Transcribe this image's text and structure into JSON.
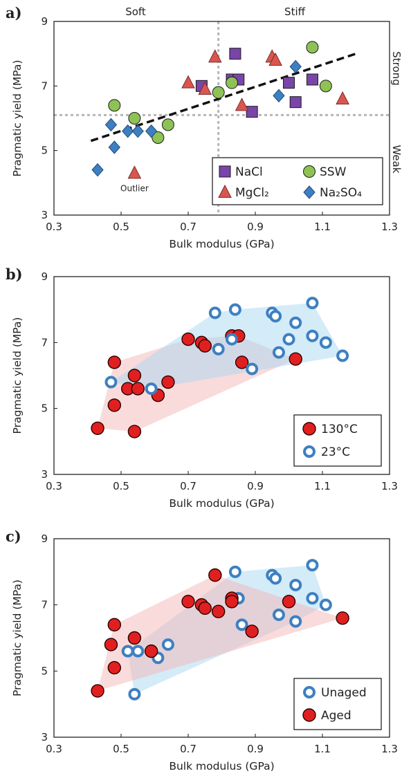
{
  "chart_data": [
    {
      "panel": "a)",
      "type": "scatter",
      "xlabel": "Bulk modulus (GPa)",
      "ylabel": "Pragmatic yield (MPa)",
      "xlim": [
        0.3,
        1.3
      ],
      "ylim": [
        3,
        9
      ],
      "xticks": [
        "0.3",
        "0.5",
        "0.7",
        "0.9",
        "1.1",
        "1.3"
      ],
      "yticks": [
        "3",
        "5",
        "7",
        "9"
      ],
      "legend_position": "bottom-right",
      "regions": {
        "soft": "Soft",
        "stiff": "Stiff",
        "strong": "Strong",
        "weak": "Weak"
      },
      "thresholds": {
        "x": 0.79,
        "y": 6.1
      },
      "trendline": {
        "x": [
          0.41,
          1.2
        ],
        "y": [
          5.3,
          8.0
        ]
      },
      "annotation": {
        "text": "Outlier",
        "x": 0.54,
        "y": 4.3
      },
      "series": [
        {
          "name": "NaCl",
          "marker": "square",
          "color": "#7a45a8",
          "x": [
            0.74,
            0.84,
            0.83,
            0.85,
            0.89,
            1.0,
            1.02,
            1.07
          ],
          "y": [
            7.0,
            8.0,
            7.2,
            7.2,
            6.2,
            7.1,
            6.5,
            7.2
          ]
        },
        {
          "name": "SSW",
          "marker": "circle",
          "color": "#8fc255",
          "x": [
            0.48,
            0.54,
            0.61,
            0.64,
            0.79,
            0.83,
            1.07,
            1.11
          ],
          "y": [
            6.4,
            6.0,
            5.4,
            5.8,
            6.8,
            7.1,
            8.2,
            7.0
          ]
        },
        {
          "name": "MgCl₂",
          "marker": "triangle",
          "color": "#d9564f",
          "x": [
            0.54,
            0.7,
            0.75,
            0.78,
            0.86,
            0.95,
            0.96,
            1.16
          ],
          "y": [
            4.3,
            7.1,
            6.9,
            7.9,
            6.4,
            7.9,
            7.8,
            6.6
          ]
        },
        {
          "name": "Na₂SO₄",
          "marker": "diamond",
          "color": "#3d80c2",
          "x": [
            0.43,
            0.47,
            0.48,
            0.52,
            0.55,
            0.59,
            0.97,
            1.02
          ],
          "y": [
            4.4,
            5.8,
            5.1,
            5.6,
            5.6,
            5.6,
            6.7,
            7.6
          ]
        }
      ]
    },
    {
      "panel": "b)",
      "type": "scatter",
      "xlabel": "Bulk modulus (GPa)",
      "ylabel": "Pragmatic yield (MPa)",
      "xlim": [
        0.3,
        1.3
      ],
      "ylim": [
        3,
        9
      ],
      "xticks": [
        "0.3",
        "0.5",
        "0.7",
        "0.9",
        "1.1",
        "1.3"
      ],
      "yticks": [
        "3",
        "5",
        "7",
        "9"
      ],
      "legend_position": "bottom-right",
      "series": [
        {
          "name": "130°C",
          "marker": "filled-circle",
          "color": "#e02020",
          "hull": "#f4b8b8",
          "x": [
            0.43,
            0.48,
            0.48,
            0.52,
            0.54,
            0.54,
            0.55,
            0.61,
            0.64,
            0.7,
            0.74,
            0.75,
            0.83,
            0.85,
            0.86,
            1.02
          ],
          "y": [
            4.4,
            6.4,
            5.1,
            5.6,
            6.0,
            4.3,
            5.6,
            5.4,
            5.8,
            7.1,
            7.0,
            6.9,
            7.2,
            7.2,
            6.4,
            6.5
          ]
        },
        {
          "name": "23°C",
          "marker": "open-circle",
          "color": "#3d80c2",
          "hull": "#a9d8f2",
          "x": [
            0.47,
            0.59,
            0.78,
            0.79,
            0.83,
            0.84,
            0.89,
            0.95,
            0.96,
            0.97,
            1.0,
            1.02,
            1.07,
            1.07,
            1.11,
            1.16
          ],
          "y": [
            5.8,
            5.6,
            7.9,
            6.8,
            7.1,
            8.0,
            6.2,
            7.9,
            7.8,
            6.7,
            7.1,
            7.6,
            8.2,
            7.2,
            7.0,
            6.6
          ]
        }
      ]
    },
    {
      "panel": "c)",
      "type": "scatter",
      "xlabel": "Bulk modulus (GPa)",
      "ylabel": "Pragmatic yield (MPa)",
      "xlim": [
        0.3,
        1.3
      ],
      "ylim": [
        3,
        9
      ],
      "xticks": [
        "0.3",
        "0.5",
        "0.7",
        "0.9",
        "1.1",
        "1.3"
      ],
      "yticks": [
        "3",
        "5",
        "7",
        "9"
      ],
      "legend_position": "bottom-right",
      "series": [
        {
          "name": "Unaged",
          "marker": "open-circle",
          "color": "#3d80c2",
          "hull": "#a9d8f2",
          "x": [
            0.52,
            0.54,
            0.55,
            0.61,
            0.64,
            0.84,
            0.85,
            0.86,
            0.95,
            0.96,
            0.97,
            1.02,
            1.02,
            1.07,
            1.07,
            1.11
          ],
          "y": [
            5.6,
            4.3,
            5.6,
            5.4,
            5.8,
            8.0,
            7.2,
            6.4,
            7.9,
            7.8,
            6.7,
            7.6,
            6.5,
            8.2,
            7.2,
            7.0
          ]
        },
        {
          "name": "Aged",
          "marker": "filled-circle",
          "color": "#e02020",
          "hull": "#f4b8b8",
          "x": [
            0.43,
            0.47,
            0.48,
            0.48,
            0.54,
            0.59,
            0.7,
            0.74,
            0.75,
            0.78,
            0.79,
            0.83,
            0.83,
            0.89,
            1.0,
            1.16
          ],
          "y": [
            4.4,
            5.8,
            6.4,
            5.1,
            6.0,
            5.6,
            7.1,
            7.0,
            6.9,
            7.9,
            6.8,
            7.2,
            7.1,
            6.2,
            7.1,
            6.6
          ]
        }
      ]
    }
  ]
}
